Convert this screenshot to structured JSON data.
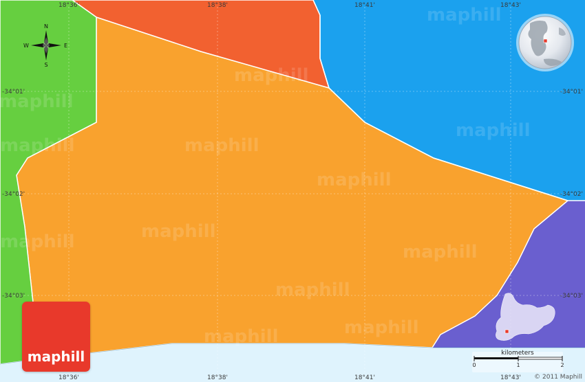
{
  "map": {
    "lon_labels_top": [
      "18°36'",
      "18°38'",
      "18°41'",
      "18°43'"
    ],
    "lon_labels_bottom": [
      "18°36'",
      "18°38'",
      "18°41'",
      "18°43'"
    ],
    "lat_labels_left": [
      "-34°01'",
      "-34°02'",
      "-34°03'"
    ],
    "lat_labels_right": [
      "-34°01'",
      "-34°02'",
      "-34°03'"
    ],
    "region_colors": {
      "main_region": "#f9a22e",
      "west_region": "#66cf40",
      "north_region": "#f26130",
      "sea": "#1ba1ee",
      "east_region": "#6a5fcf",
      "coast_strip": "#dff3fd"
    },
    "watermark_text": "maphill"
  },
  "compass": {
    "north": "N",
    "south": "S",
    "east": "E",
    "west": "W",
    "icon": "compass-rose-icon"
  },
  "globe": {
    "icon": "globe-locator-icon"
  },
  "province_inset": {
    "icon": "province-locator-icon"
  },
  "scale_bar": {
    "title": "kilometers",
    "ticks": [
      "0",
      "1",
      "2"
    ]
  },
  "logo": {
    "text": "maphill",
    "color": "#e8392b"
  },
  "copyright": "© 2011 Maphill"
}
